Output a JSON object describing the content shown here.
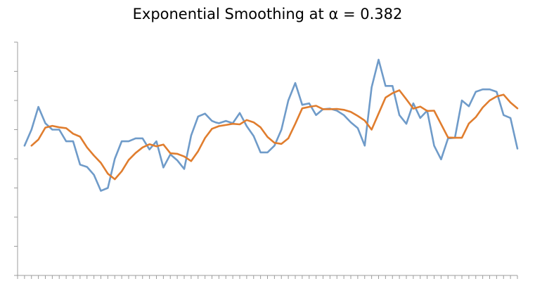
{
  "chart_data": {
    "type": "line",
    "title": "Exponential Smoothing at α = 0.382",
    "xlabel": "",
    "ylabel": "",
    "ylim": [
      0,
      8
    ],
    "y_ticks": [
      0,
      1,
      2,
      3,
      4,
      5,
      6,
      7,
      8
    ],
    "y_tick_labels_visible": false,
    "x_tick_labels_visible": false,
    "grid": false,
    "legend": "none",
    "x": [
      1,
      2,
      3,
      4,
      5,
      6,
      7,
      8,
      9,
      10,
      11,
      12,
      13,
      14,
      15,
      16,
      17,
      18,
      19,
      20,
      21,
      22,
      23,
      24,
      25,
      26,
      27,
      28,
      28.5,
      29,
      30,
      31,
      32,
      33,
      34,
      35,
      36,
      37,
      38,
      39,
      40,
      41,
      42,
      43,
      44,
      45,
      46,
      47,
      48,
      49,
      50,
      51,
      52,
      53,
      54,
      55,
      56,
      57,
      58,
      59,
      60,
      61,
      62,
      63,
      64,
      65,
      66,
      67,
      68,
      69,
      70,
      71,
      72
    ],
    "series": [
      {
        "color": "#6f9bc9",
        "values": [
          4.45,
          5.0,
          5.78,
          5.22,
          5.0,
          5.0,
          4.6,
          4.6,
          3.8,
          3.72,
          3.45,
          2.9,
          3.0,
          4.0,
          4.6,
          4.6,
          4.7,
          4.7,
          4.32,
          4.6,
          3.7,
          4.15,
          3.95,
          3.65,
          4.8,
          5.45,
          5.55,
          5.3,
          5.25,
          5.22,
          5.3,
          5.22,
          5.57,
          5.12,
          4.78,
          4.22,
          4.22,
          4.45,
          5.0,
          6.0,
          6.6,
          5.85,
          5.9,
          5.5,
          5.7,
          5.72,
          5.65,
          5.5,
          5.25,
          5.05,
          4.45,
          6.45,
          7.4,
          6.5,
          6.5,
          5.5,
          5.2,
          5.9,
          5.4,
          5.65,
          4.45,
          3.98,
          4.7,
          4.72,
          6.0,
          5.8,
          6.3,
          6.38,
          6.38,
          6.3,
          5.5,
          5.4,
          4.35
        ],
        "name": ""
      },
      {
        "color": "#e07d2e",
        "values": null,
        "values_by_x": [
          [
            2,
            4.45
          ],
          [
            3,
            4.66
          ],
          [
            4,
            5.07
          ],
          [
            5,
            5.13
          ],
          [
            6,
            5.08
          ],
          [
            7,
            5.05
          ],
          [
            8,
            4.86
          ],
          [
            9,
            4.76
          ],
          [
            10,
            4.39
          ],
          [
            11,
            4.11
          ],
          [
            12,
            3.86
          ],
          [
            13,
            3.49
          ],
          [
            14,
            3.3
          ],
          [
            15,
            3.57
          ],
          [
            16,
            3.96
          ],
          [
            17,
            4.2
          ],
          [
            18,
            4.39
          ],
          [
            19,
            4.5
          ],
          [
            20,
            4.43
          ],
          [
            21,
            4.49
          ],
          [
            22,
            4.19
          ],
          [
            23,
            4.17
          ],
          [
            24,
            4.08
          ],
          [
            25,
            3.92
          ],
          [
            26,
            4.26
          ],
          [
            27,
            4.71
          ],
          [
            28,
            5.03
          ],
          [
            29,
            5.12
          ],
          [
            30,
            5.16
          ],
          [
            31,
            5.2
          ],
          [
            32,
            5.18
          ],
          [
            33,
            5.33
          ],
          [
            34,
            5.25
          ],
          [
            35,
            5.08
          ],
          [
            36,
            4.75
          ],
          [
            37,
            4.55
          ],
          [
            38,
            4.51
          ],
          [
            39,
            4.7
          ],
          [
            40,
            5.2
          ],
          [
            41,
            5.73
          ],
          [
            42,
            5.78
          ],
          [
            43,
            5.82
          ],
          [
            44,
            5.7
          ],
          [
            45,
            5.7
          ],
          [
            46,
            5.71
          ],
          [
            47,
            5.68
          ],
          [
            48,
            5.61
          ],
          [
            49,
            5.47
          ],
          [
            50,
            5.31
          ],
          [
            51,
            5.0
          ],
          [
            52,
            5.55
          ],
          [
            53,
            6.1
          ],
          [
            54,
            6.25
          ],
          [
            55,
            6.35
          ],
          [
            56,
            6.04
          ],
          [
            57,
            5.72
          ],
          [
            58,
            5.79
          ],
          [
            59,
            5.64
          ],
          [
            60,
            5.65
          ],
          [
            61,
            5.19
          ],
          [
            62,
            4.73
          ],
          [
            63,
            4.72
          ],
          [
            64,
            4.72
          ],
          [
            65,
            5.21
          ],
          [
            66,
            5.43
          ],
          [
            67,
            5.76
          ],
          [
            68,
            6.0
          ],
          [
            69,
            6.14
          ],
          [
            70,
            6.2
          ],
          [
            71,
            5.93
          ],
          [
            72,
            5.73
          ]
        ],
        "name": ""
      }
    ]
  }
}
